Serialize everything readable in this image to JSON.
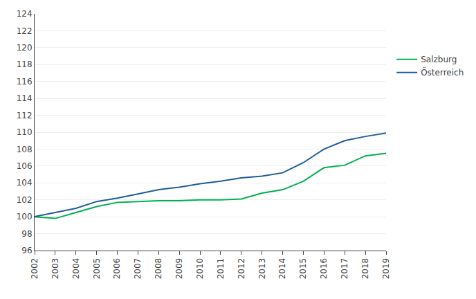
{
  "chart_data": {
    "type": "line",
    "x": [
      2002,
      2003,
      2004,
      2005,
      2006,
      2007,
      2008,
      2009,
      2010,
      2011,
      2012,
      2013,
      2014,
      2015,
      2016,
      2017,
      2018,
      2019
    ],
    "series": [
      {
        "name": "Salzburg",
        "color": "#00b050",
        "values": [
          100.0,
          99.8,
          100.5,
          101.2,
          101.7,
          101.8,
          101.9,
          101.9,
          102.0,
          102.0,
          102.1,
          102.8,
          103.2,
          104.2,
          105.8,
          106.1,
          107.2,
          107.5
        ]
      },
      {
        "name": "Österreich",
        "color": "#1f5c99",
        "values": [
          100.0,
          100.5,
          101.0,
          101.8,
          102.2,
          102.7,
          103.2,
          103.5,
          103.9,
          104.2,
          104.6,
          104.8,
          105.2,
          106.4,
          108.0,
          109.0,
          109.5,
          109.9
        ]
      }
    ],
    "xlim": [
      2002,
      2019
    ],
    "xticks": [
      2002,
      2003,
      2004,
      2005,
      2006,
      2007,
      2008,
      2009,
      2010,
      2011,
      2012,
      2013,
      2014,
      2015,
      2016,
      2017,
      2018,
      2019
    ],
    "ylim": [
      96,
      124
    ],
    "yticks": [
      96,
      98,
      100,
      102,
      104,
      106,
      108,
      110,
      112,
      114,
      116,
      118,
      120,
      122,
      124
    ],
    "grid": "y",
    "legend": "right"
  }
}
